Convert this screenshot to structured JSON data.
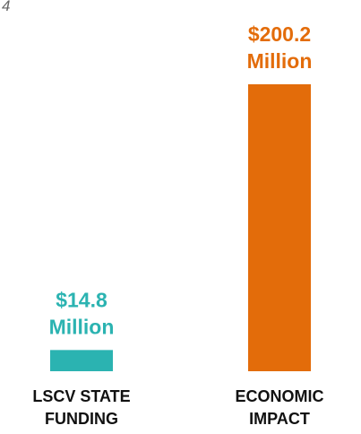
{
  "corner_mark": "4",
  "chart_data": {
    "type": "bar",
    "categories": [
      "LSCV STATE FUNDING",
      "ECONOMIC IMPACT"
    ],
    "category_lines": [
      [
        "LSCV STATE",
        "FUNDING"
      ],
      [
        "ECONOMIC",
        "IMPACT"
      ]
    ],
    "values": [
      14.8,
      200.2
    ],
    "unit": "Million",
    "value_labels": [
      [
        "$14.8",
        "Million"
      ],
      [
        "$200.2",
        "Million"
      ]
    ],
    "colors": [
      "#2bb3b1",
      "#e36c0a"
    ],
    "title": "",
    "xlabel": "",
    "ylabel": "",
    "ylim": [
      0,
      200.2
    ],
    "grid": false,
    "legend": "none"
  }
}
